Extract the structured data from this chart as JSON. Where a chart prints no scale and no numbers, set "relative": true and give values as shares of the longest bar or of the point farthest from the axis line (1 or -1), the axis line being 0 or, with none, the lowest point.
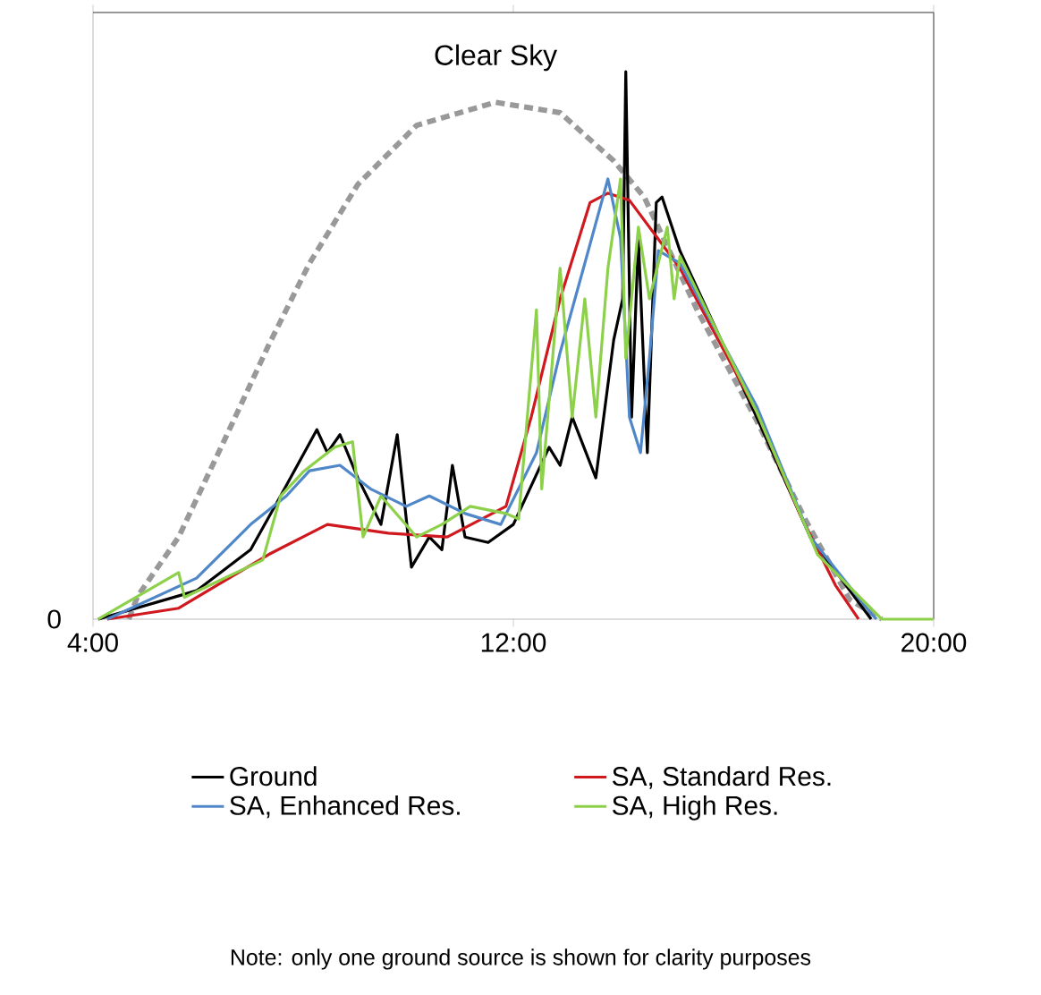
{
  "chart_data": {
    "type": "line",
    "relative": true,
    "xlim": [
      4,
      20
    ],
    "xticks": [
      {
        "value": 4,
        "label": "4:00"
      },
      {
        "value": 12,
        "label": "12:00"
      },
      {
        "value": 20,
        "label": "20:00"
      }
    ],
    "tick_labels": "x",
    "legend": "bottom",
    "marker": "none",
    "line_style": "solid",
    "series": [
      {
        "color": "#999999",
        "line_style": "dashed",
        "x": [
          4.68,
          4.85,
          5.63,
          6.55,
          7.34,
          8.12,
          9.04,
          10.16,
          11.66,
          12.89,
          13.91,
          14.49,
          15.51,
          16.63,
          17.55,
          18.4,
          19.01
        ],
        "values": [
          0,
          0.042,
          0.15,
          0.337,
          0.5,
          0.65,
          0.794,
          0.902,
          0.944,
          0.925,
          0.837,
          0.771,
          0.562,
          0.363,
          0.183,
          0.036,
          0
        ]
      },
      {
        "name": "Ground",
        "color": "#000000",
        "x": [
          4.1,
          5.97,
          7.0,
          7.57,
          8.02,
          8.26,
          8.46,
          8.7,
          9.04,
          9.48,
          9.79,
          10.06,
          10.4,
          10.64,
          10.84,
          11.08,
          11.52,
          12.0,
          12.68,
          12.89,
          13.12,
          13.57,
          13.91,
          14.08,
          14.14,
          14.25,
          14.38,
          14.55,
          14.72,
          14.83,
          15.17,
          16.63,
          17.65,
          18.81
        ],
        "values": [
          0,
          0.052,
          0.127,
          0.225,
          0.304,
          0.346,
          0.304,
          0.337,
          0.258,
          0.173,
          0.337,
          0.095,
          0.15,
          0.127,
          0.281,
          0.15,
          0.14,
          0.173,
          0.314,
          0.281,
          0.369,
          0.258,
          0.51,
          0.585,
          1.0,
          0.369,
          0.696,
          0.304,
          0.761,
          0.771,
          0.673,
          0.369,
          0.15,
          0
        ]
      },
      {
        "name": "SA, Standard Res.",
        "color": "#d0181f",
        "x": [
          4.27,
          5.63,
          7.34,
          8.46,
          9.62,
          10.74,
          11.86,
          12.34,
          12.89,
          13.46,
          13.8,
          14.21,
          15.17,
          16.63,
          17.45,
          18.13,
          18.57
        ],
        "values": [
          0,
          0.02,
          0.118,
          0.173,
          0.157,
          0.15,
          0.206,
          0.369,
          0.585,
          0.761,
          0.778,
          0.765,
          0.641,
          0.379,
          0.193,
          0.062,
          0
        ]
      },
      {
        "name": "SA, Enhanced Res.",
        "color": "#4f87c9",
        "x": [
          4.27,
          5.97,
          7.0,
          7.68,
          8.12,
          8.7,
          9.28,
          9.96,
          10.4,
          11.08,
          11.76,
          12.44,
          12.89,
          13.36,
          13.8,
          14.04,
          14.21,
          14.42,
          14.59,
          14.76,
          15.17,
          16.63,
          17.65,
          18.81,
          18.91
        ],
        "values": [
          0,
          0.075,
          0.173,
          0.225,
          0.271,
          0.281,
          0.238,
          0.206,
          0.225,
          0.193,
          0.173,
          0.304,
          0.487,
          0.65,
          0.804,
          0.696,
          0.369,
          0.304,
          0.477,
          0.673,
          0.65,
          0.389,
          0.15,
          0.01,
          0
        ]
      },
      {
        "name": "SA, High Res.",
        "color": "#8dd14b",
        "x": [
          4.1,
          5.63,
          5.74,
          7.23,
          7.57,
          8.02,
          8.6,
          8.94,
          9.14,
          9.48,
          10.16,
          10.64,
          11.18,
          11.86,
          12.1,
          12.44,
          12.54,
          12.89,
          13.12,
          13.36,
          13.57,
          13.8,
          14.04,
          14.14,
          14.38,
          14.59,
          14.93,
          15.06,
          15.17,
          16.63,
          17.79,
          19.01,
          20.0
        ],
        "values": [
          0,
          0.085,
          0.04,
          0.108,
          0.225,
          0.271,
          0.314,
          0.324,
          0.15,
          0.225,
          0.15,
          0.173,
          0.206,
          0.193,
          0.183,
          0.565,
          0.238,
          0.641,
          0.369,
          0.585,
          0.369,
          0.641,
          0.804,
          0.477,
          0.716,
          0.585,
          0.716,
          0.585,
          0.663,
          0.379,
          0.118,
          0,
          0
        ]
      }
    ],
    "annotations": [
      {
        "text": "Clear Sky",
        "x": 11.66,
        "y": 0.944
      },
      "0",
      "Note: only one ground source is shown for clarity purposes"
    ]
  }
}
